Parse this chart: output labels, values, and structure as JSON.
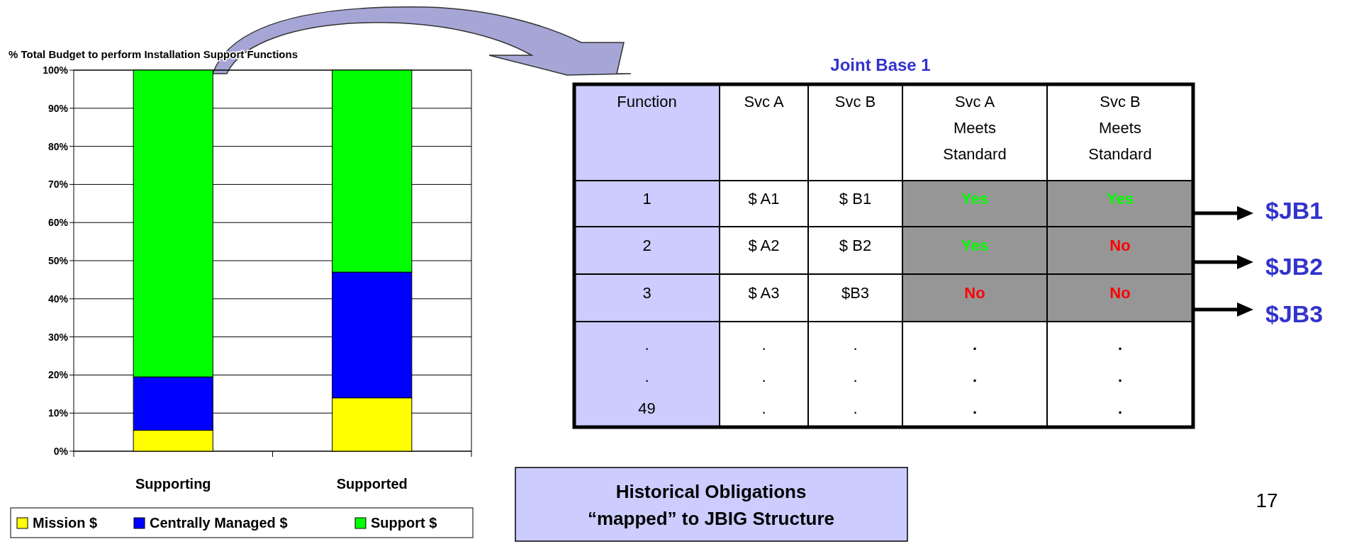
{
  "chart_data": [
    {
      "type": "bar",
      "title": "% Total Budget to perform Installation Support Functions",
      "categories": [
        "Supporting",
        "Supported"
      ],
      "series": [
        {
          "name": "Mission $",
          "color": "#ffff00",
          "values": [
            5.5,
            14
          ]
        },
        {
          "name": "Centrally Managed $",
          "color": "#0000ff",
          "values": [
            14,
            33
          ]
        },
        {
          "name": "Support $",
          "color": "#00ff00",
          "values": [
            80.5,
            53
          ]
        }
      ],
      "stacked": true,
      "ylim": [
        0,
        100
      ],
      "yticks": [
        {
          "value": 0,
          "label": "0%"
        },
        {
          "value": 10,
          "label": "10%"
        },
        {
          "value": 20,
          "label": "20%"
        },
        {
          "value": 30,
          "label": "30%"
        },
        {
          "value": 40,
          "label": "40%"
        },
        {
          "value": 50,
          "label": "50%"
        },
        {
          "value": 60,
          "label": "60%"
        },
        {
          "value": 70,
          "label": "70%"
        },
        {
          "value": 80,
          "label": "80%"
        },
        {
          "value": 90,
          "label": "90%"
        },
        {
          "value": 100,
          "label": "100%"
        }
      ],
      "grid": "y",
      "legend": "bottom"
    },
    {
      "type": "other",
      "title": "Joint Base 1",
      "categories": [
        "Function",
        "Svc A",
        "Svc B",
        "Svc A\nMeets\nStandard",
        "Svc B\nMeets\nStandard"
      ],
      "cell_labels": [
        [
          "1",
          "$ A1",
          "$ B1",
          "Yes",
          "Yes"
        ],
        [
          "2",
          "$ A2",
          "$ B2",
          "Yes",
          "No"
        ],
        [
          "3",
          "$ A3",
          "$B3",
          "No",
          "No"
        ],
        [
          ".\n.\n49",
          ".\n.\n.",
          ".\n.\n.",
          ".\n.\n.",
          ".\n.\n."
        ]
      ],
      "colors": [
        [
          "#000000",
          "#000000",
          "#000000",
          "#00ff00",
          "#00ff00"
        ],
        [
          "#000000",
          "#000000",
          "#000000",
          "#00ff00",
          "#ff0000"
        ],
        [
          "#000000",
          "#000000",
          "#000000",
          "#ff0000",
          "#ff0000"
        ],
        [
          "#000000",
          "#000000",
          "#000000",
          "#000000",
          "#000000"
        ]
      ],
      "y2_categories": [
        "$JB1",
        "$JB2",
        "$JB3",
        null
      ],
      "annotations": [
        "Historical Obligations\n“mapped” to JBIG Structure",
        "17"
      ]
    }
  ]
}
